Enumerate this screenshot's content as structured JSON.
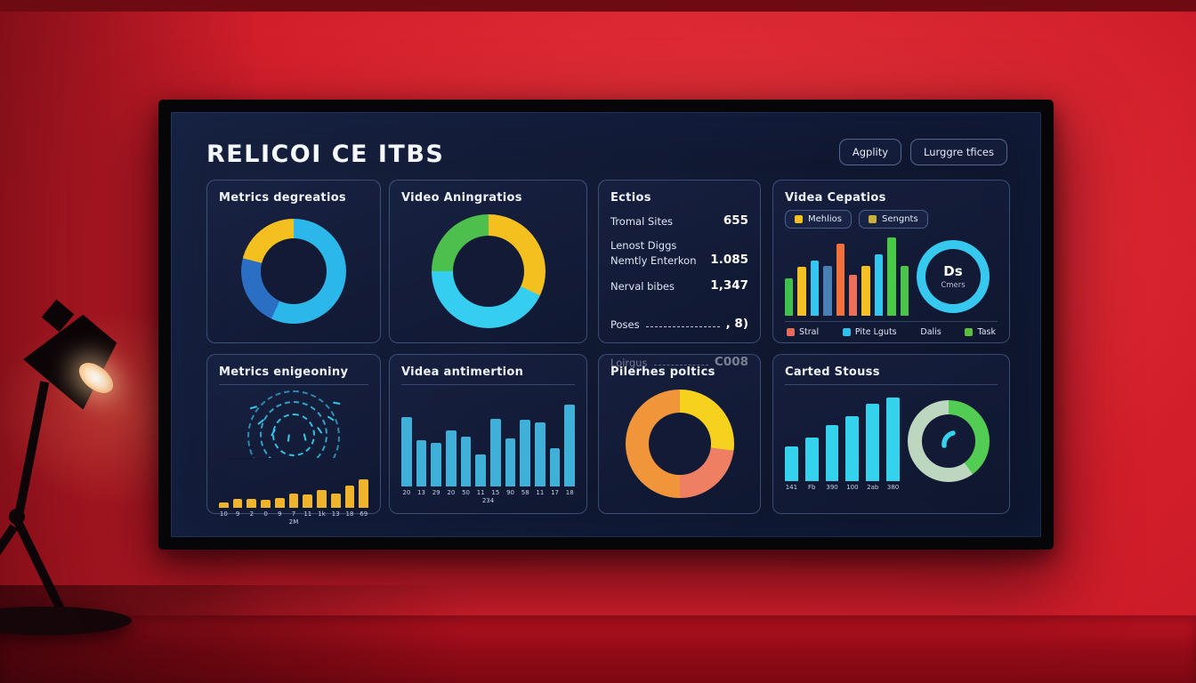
{
  "header": {
    "title": "RELICOI CE ITBS",
    "buttons": [
      {
        "label": "Agplity"
      },
      {
        "label": "Lurggre tfices"
      }
    ]
  },
  "colors": {
    "screen_bg": "#121a36",
    "cyan": "#2fc1ee",
    "yellow": "#f2c021",
    "green": "#47cb47",
    "orange": "#f0953a",
    "salmon": "#ee7f63",
    "blue": "#2b6fc4"
  },
  "panels": {
    "p1": {
      "title": "Metrics degreatios",
      "chart_data": {
        "type": "pie",
        "segments": [
          {
            "label": "cyan",
            "color": "#2bb7e9",
            "value": 57
          },
          {
            "label": "blue",
            "color": "#2b6fc4",
            "value": 22
          },
          {
            "label": "yellow",
            "color": "#f3c01f",
            "value": 21
          }
        ]
      }
    },
    "p2": {
      "title": "Video Aningratios",
      "chart_data": {
        "type": "pie",
        "segments": [
          {
            "label": "yellow",
            "color": "#f3c01f",
            "value": 32
          },
          {
            "label": "cyan",
            "color": "#35cdf0",
            "value": 43
          },
          {
            "label": "green",
            "color": "#4cbf4c",
            "value": 25
          }
        ]
      }
    },
    "p3": {
      "title": "Ectios",
      "rows": [
        {
          "label": "Tromal Sites",
          "value": "655"
        },
        {
          "label": "Lenost Diggs",
          "label2": "Nemtly Enterkon",
          "value": "1.085"
        },
        {
          "label": "Nerval bibes",
          "value": "1,347"
        },
        {
          "label": "Poses",
          "value": ", 8)",
          "dashed": true
        },
        {
          "label": "Loirgus",
          "value": "C008",
          "dashed": true
        }
      ]
    },
    "p4": {
      "title": "Videa Cepatios",
      "chips": [
        {
          "label": "Mehlios",
          "color": "#f2c21e"
        },
        {
          "label": "Sengnts",
          "color": "#c9b23a"
        }
      ],
      "chart_data": {
        "type": "bar",
        "values": [
          48,
          62,
          70,
          64,
          92,
          52,
          64,
          78,
          100,
          64
        ],
        "colors": [
          "#3fc24d",
          "#f5c026",
          "#33c6ee",
          "#4a7fb5",
          "#f2703a",
          "#ef6e5a",
          "#f5c026",
          "#33c6ee",
          "#47cb47",
          "#4bc44b"
        ]
      },
      "ring": {
        "segments": [
          {
            "label": "cyan",
            "color": "#36c8ee",
            "value": 100
          }
        ]
      },
      "ring_center": {
        "big": "Ds",
        "small": "Cmers"
      },
      "legend": [
        {
          "label": "Stral",
          "color": "#e86a5a"
        },
        {
          "label": "Pite Lguts",
          "color": "#2fc1ee"
        },
        {
          "label": "Dalis",
          "color": null
        },
        {
          "label": "Task",
          "color": "#5abf3f"
        }
      ]
    },
    "p5": {
      "title": "Metrics enigeoniny",
      "chart_data": {
        "type": "bar",
        "values": [
          12,
          19,
          19,
          18,
          22,
          30,
          28,
          38,
          30,
          48,
          62
        ],
        "color": "#f0b42c",
        "labels": [
          "10",
          "9",
          "2",
          "0",
          "9",
          "7",
          "11",
          "1k",
          "13",
          "18",
          "69"
        ],
        "sub_label": "2M"
      }
    },
    "p6": {
      "title": "Videa antimertion",
      "chart_data": {
        "type": "bar",
        "values": [
          72,
          48,
          45,
          58,
          52,
          33,
          70,
          50,
          69,
          67,
          40,
          85
        ],
        "color": "#3fb0d8",
        "labels": [
          "20",
          "13",
          "29",
          "20",
          "50",
          "11",
          "15",
          "90",
          "58",
          "11",
          "17",
          "18"
        ],
        "sub_label": "234"
      }
    },
    "p7": {
      "title": "Pilerhes poltics",
      "chart_data": {
        "type": "pie",
        "segments": [
          {
            "label": "yellow",
            "color": "#f6d11d",
            "value": 27
          },
          {
            "label": "salmon",
            "color": "#ee7f63",
            "value": 23
          },
          {
            "label": "orange",
            "color": "#f0953a",
            "value": 50
          }
        ]
      }
    },
    "p8": {
      "title": "Carted Stouss",
      "chart_data": {
        "type": "bar",
        "values": [
          38,
          48,
          62,
          72,
          85,
          92
        ],
        "color": "#35d2ee",
        "labels": [
          "141",
          "Fb",
          "390",
          "100",
          "2ab",
          "380"
        ]
      },
      "ring": {
        "segments": [
          {
            "label": "green",
            "color": "#52cc52",
            "value": 40
          },
          {
            "label": "sage",
            "color": "#bcd6c0",
            "value": 60
          }
        ]
      }
    }
  }
}
